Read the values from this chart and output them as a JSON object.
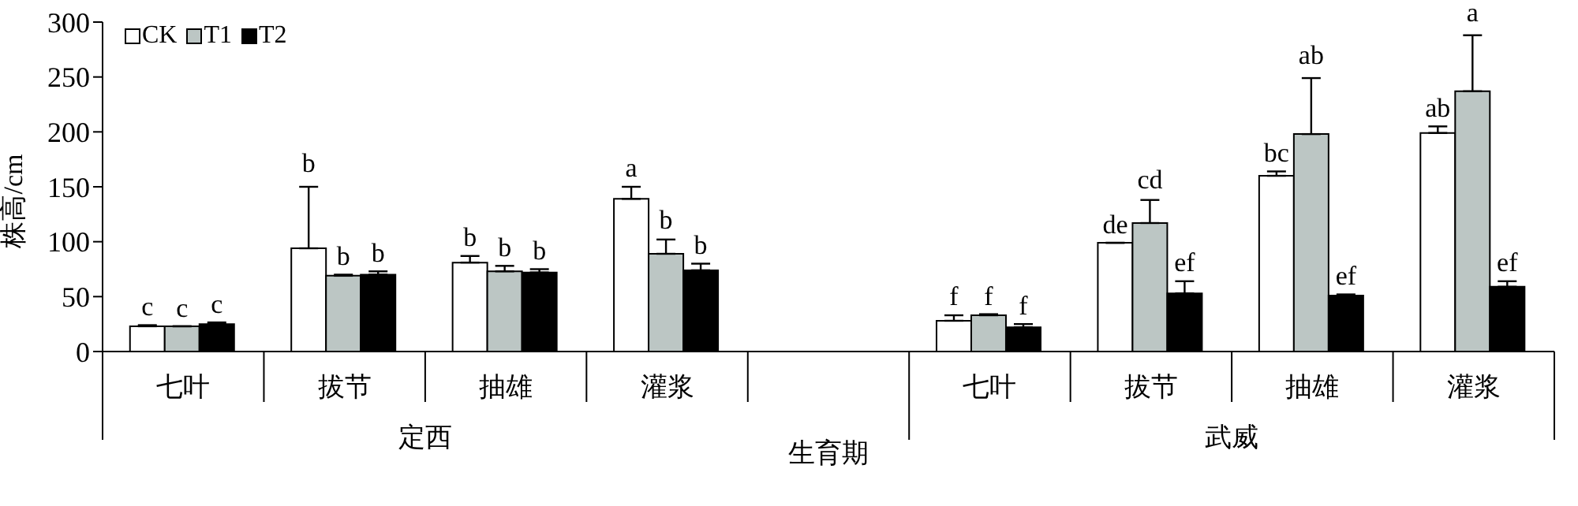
{
  "chart_data": {
    "type": "bar",
    "ylabel": "株高/cm",
    "xlabel": "生育期",
    "categories": [
      "七叶",
      "拔节",
      "抽雄",
      "灌浆",
      null,
      "七叶",
      "拔节",
      "抽雄",
      "灌浆"
    ],
    "annotations": [
      "定西",
      "武威"
    ],
    "ylim": [
      0,
      300
    ],
    "yticks": [
      0,
      50,
      100,
      150,
      200,
      250,
      300
    ],
    "grid": false,
    "legend": "top left",
    "series": [
      {
        "name": "CK",
        "color": "#ffffff",
        "values": [
          23,
          94,
          81,
          139,
          null,
          28,
          99,
          160,
          199
        ],
        "errors": [
          [
            23,
            24
          ],
          [
            94,
            150
          ],
          [
            81,
            87
          ],
          [
            139,
            150
          ],
          null,
          [
            28,
            33
          ],
          [
            99,
            99
          ],
          [
            160,
            164
          ],
          [
            199,
            205
          ]
        ],
        "value_labels": [
          "c",
          "b",
          "b",
          "a",
          null,
          "f",
          "de",
          "bc",
          "ab"
        ]
      },
      {
        "name": "T1",
        "color": "#bcc6c4",
        "values": [
          23,
          69,
          73,
          89,
          null,
          33,
          117,
          198,
          237
        ],
        "errors": [
          [
            23,
            23
          ],
          [
            69,
            70
          ],
          [
            73,
            78
          ],
          [
            89,
            102
          ],
          null,
          [
            33,
            34
          ],
          [
            117,
            138
          ],
          [
            198,
            249
          ],
          [
            237,
            288
          ]
        ],
        "value_labels": [
          "c",
          "b",
          "b",
          "b",
          null,
          "f",
          "cd",
          "ab",
          "a"
        ]
      },
      {
        "name": "T2",
        "color": "#000000",
        "values": [
          25,
          70,
          72,
          74,
          null,
          22,
          53,
          51,
          59
        ],
        "errors": [
          [
            25,
            26.5
          ],
          [
            70,
            73
          ],
          [
            72,
            75
          ],
          [
            74,
            80
          ],
          null,
          [
            22,
            25
          ],
          [
            53,
            64
          ],
          [
            51,
            52
          ],
          [
            59,
            64
          ]
        ],
        "value_labels": [
          "c",
          "b",
          "b",
          "b",
          null,
          "f",
          "ef",
          "ef",
          "ef"
        ]
      }
    ]
  }
}
